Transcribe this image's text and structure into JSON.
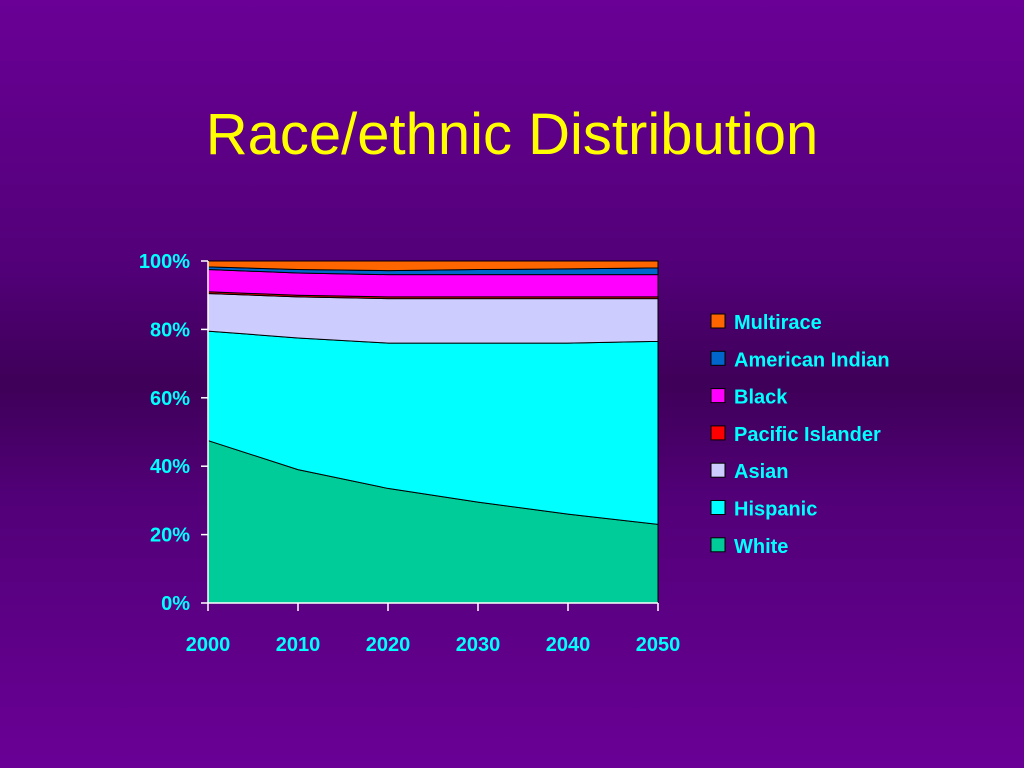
{
  "title": "Race/ethnic Distribution",
  "colors": {
    "axis_text": "#00ffff",
    "legend_text": "#00ffff",
    "title": "#ffff00",
    "axis_line": "#ffffff"
  },
  "chart_data": {
    "type": "area",
    "stacked": true,
    "percent": true,
    "title": "",
    "xlabel": "",
    "ylabel": "",
    "x": [
      "2000",
      "2010",
      "2020",
      "2030",
      "2040",
      "2050"
    ],
    "ylim": [
      0,
      100
    ],
    "y_ticks": [
      "0%",
      "20%",
      "40%",
      "60%",
      "80%",
      "100%"
    ],
    "legend_position": "right",
    "series": [
      {
        "name": "White",
        "color": "#00cc99",
        "values": [
          47.5,
          39,
          33.5,
          29.5,
          26,
          23
        ]
      },
      {
        "name": "Hispanic",
        "color": "#00ffff",
        "values": [
          32,
          38.5,
          42.5,
          46.5,
          50,
          53.5
        ]
      },
      {
        "name": "Asian",
        "color": "#ccccff",
        "values": [
          11,
          12,
          13,
          13,
          13,
          12.5
        ]
      },
      {
        "name": "Pacific Islander",
        "color": "#ff0000",
        "values": [
          0.5,
          0.5,
          0.5,
          0.5,
          0.5,
          0.5
        ]
      },
      {
        "name": "Black",
        "color": "#ff00ff",
        "values": [
          6.5,
          6.5,
          6.5,
          6.5,
          6.5,
          6.5
        ]
      },
      {
        "name": "American Indian",
        "color": "#0066cc",
        "values": [
          0.8,
          1.0,
          1.2,
          1.5,
          1.7,
          2.0
        ]
      },
      {
        "name": "Multirace",
        "color": "#ff6600",
        "values": [
          1.7,
          2.5,
          2.8,
          2.5,
          2.3,
          2.0
        ]
      }
    ],
    "legend_order": [
      "Multirace",
      "American Indian",
      "Black",
      "Pacific Islander",
      "Asian",
      "Hispanic",
      "White"
    ]
  }
}
